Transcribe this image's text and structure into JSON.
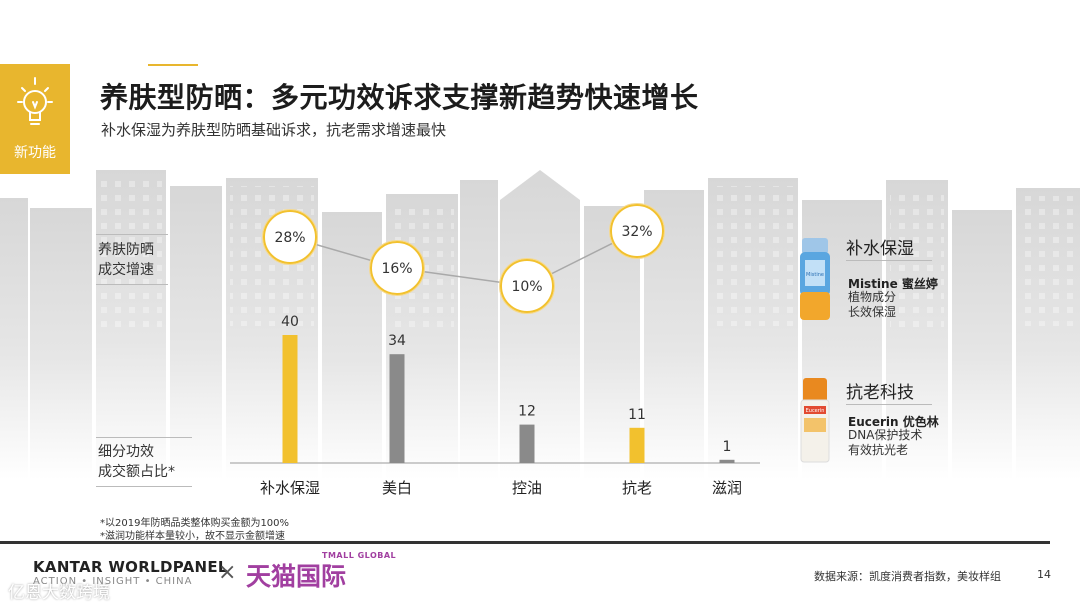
{
  "badge": {
    "icon": "lightbulb-icon",
    "label": "新功能"
  },
  "title": "养肤型防晒：多元功效诉求支撑新趋势快速增长",
  "subtitle": "补水保湿为养肤型防晒基础诉求，抗老需求增速最快",
  "row_labels": {
    "growth": [
      "养肤防晒",
      "成交增速"
    ],
    "share": [
      "细分功效",
      "成交额占比*"
    ]
  },
  "chart_data": {
    "type": "bar",
    "title": "养肤型防晒：多元功效诉求支撑新趋势快速增长",
    "categories": [
      "补水保湿",
      "美白",
      "控油",
      "抗老",
      "滋润"
    ],
    "series": [
      {
        "name": "细分功效成交额占比*",
        "values": [
          40,
          34,
          12,
          11,
          1
        ]
      },
      {
        "name": "养肤防晒成交增速",
        "values": [
          "28%",
          "16%",
          "10%",
          "32%",
          null
        ]
      }
    ],
    "bar_colors": [
      "#f2c12e",
      "#8a8a8a",
      "#8a8a8a",
      "#f2c12e",
      "#8a8a8a"
    ],
    "growth_color": "#f2c12e",
    "legend": "none",
    "grid": false
  },
  "footnotes": [
    "*以2019年防晒品类整体购买金额为100%",
    "*滋润功能样本量较小，故不显示金额增速"
  ],
  "products": [
    {
      "category": "补水保湿",
      "brand": "Mistine 蜜丝婷",
      "desc": [
        "植物成分",
        "长效保湿"
      ]
    },
    {
      "category": "抗老科技",
      "brand": "Eucerin 优色林",
      "desc": [
        "DNA保护技术",
        "有效抗光老"
      ]
    }
  ],
  "product_labels": {
    "bottle1": "Mistine",
    "bottle2": "Eucerin"
  },
  "footer": {
    "kantar": "KANTAR WORLDPANEL",
    "kantar_sub": "ACTION • INSIGHT • CHINA",
    "cross": "×",
    "tmall": "天猫国际",
    "tmall_global": "TMALL GLOBAL",
    "watermark": "亿恩大数跨境",
    "source": "数据来源：凯度消费者指数，美妆样组",
    "page": "14"
  }
}
